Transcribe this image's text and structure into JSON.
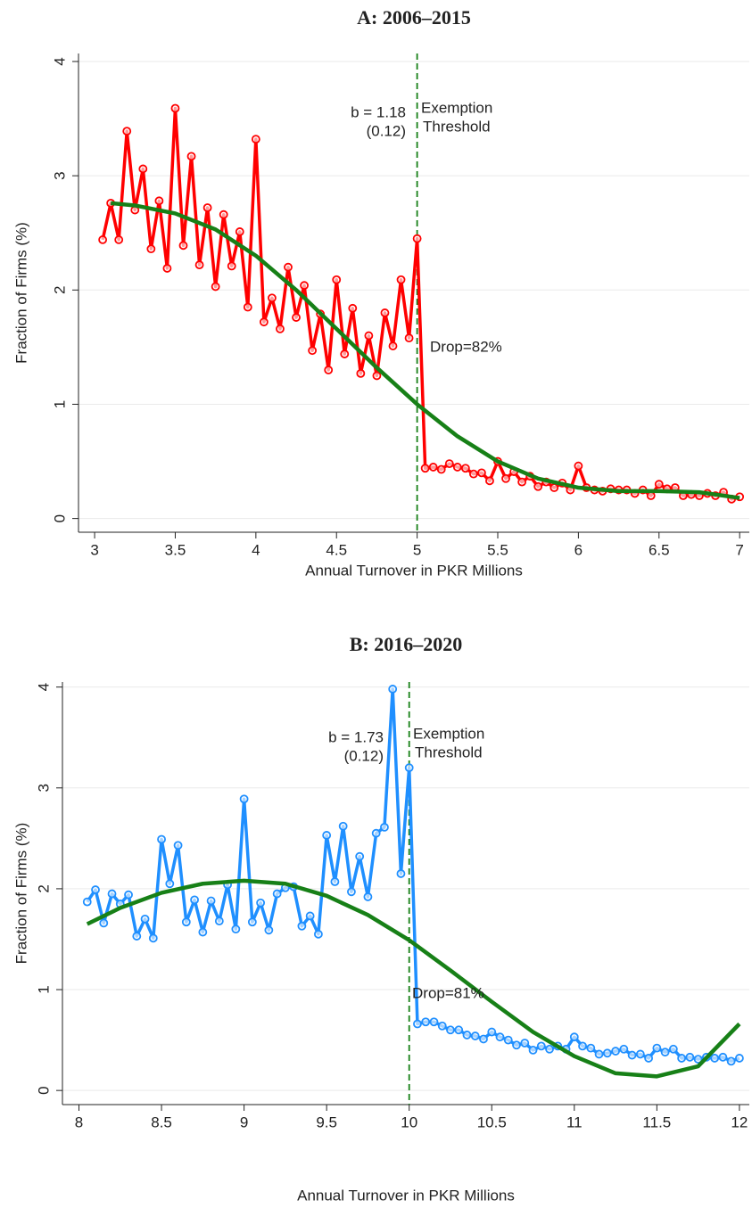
{
  "chart_data": [
    {
      "type": "line",
      "title": "A: 2006–2015",
      "xlabel": "Annual Turnover in PKR Millions",
      "ylabel": "Fraction of Firms (%)",
      "xlim": [
        2.9,
        7.06
      ],
      "ylim": [
        -0.12,
        4.07
      ],
      "xticks": [
        3,
        3.5,
        4,
        4.5,
        5,
        5.5,
        6,
        6.5,
        7
      ],
      "yticks": [
        0,
        1,
        2,
        3,
        4
      ],
      "grid": true,
      "threshold": 5,
      "annotations": [
        "b = 1.18",
        "(0.12)",
        "Exemption",
        "Threshold",
        "Drop=82%"
      ],
      "series": [
        {
          "color": "#ff0000",
          "marker": true,
          "x": [
            3.05,
            3.1,
            3.15,
            3.2,
            3.25,
            3.3,
            3.35,
            3.4,
            3.45,
            3.5,
            3.55,
            3.6,
            3.65,
            3.7,
            3.75,
            3.8,
            3.85,
            3.9,
            3.95,
            4.0,
            4.05,
            4.1,
            4.15,
            4.2,
            4.25,
            4.3,
            4.35,
            4.4,
            4.45,
            4.5,
            4.55,
            4.6,
            4.65,
            4.7,
            4.75,
            4.8,
            4.85,
            4.9,
            4.95,
            5.0,
            5.05,
            5.1,
            5.15,
            5.2,
            5.25,
            5.3,
            5.35,
            5.4,
            5.45,
            5.5,
            5.55,
            5.6,
            5.65,
            5.7,
            5.75,
            5.8,
            5.85,
            5.9,
            5.95,
            6.0,
            6.05,
            6.1,
            6.15,
            6.2,
            6.25,
            6.3,
            6.35,
            6.4,
            6.45,
            6.5,
            6.55,
            6.6,
            6.65,
            6.7,
            6.75,
            6.8,
            6.85,
            6.9,
            6.95,
            7.0
          ],
          "values": [
            2.44,
            2.76,
            2.44,
            3.39,
            2.7,
            3.06,
            2.36,
            2.78,
            2.19,
            3.59,
            2.39,
            3.17,
            2.22,
            2.72,
            2.03,
            2.66,
            2.21,
            2.51,
            1.85,
            3.32,
            1.72,
            1.93,
            1.66,
            2.2,
            1.76,
            2.04,
            1.47,
            1.79,
            1.3,
            2.09,
            1.44,
            1.84,
            1.27,
            1.6,
            1.25,
            1.8,
            1.51,
            2.09,
            1.58,
            2.45,
            0.44,
            0.45,
            0.43,
            0.48,
            0.45,
            0.44,
            0.39,
            0.4,
            0.33,
            0.5,
            0.35,
            0.41,
            0.32,
            0.37,
            0.28,
            0.32,
            0.27,
            0.31,
            0.25,
            0.46,
            0.27,
            0.25,
            0.24,
            0.26,
            0.25,
            0.25,
            0.22,
            0.25,
            0.2,
            0.3,
            0.26,
            0.27,
            0.2,
            0.21,
            0.2,
            0.22,
            0.2,
            0.23,
            0.17,
            0.19
          ]
        },
        {
          "color": "#178017",
          "marker": false,
          "x": [
            3.1,
            3.25,
            3.5,
            3.75,
            4.0,
            4.25,
            4.5,
            4.75,
            5.0,
            5.25,
            5.5,
            5.75,
            6.0,
            6.25,
            6.5,
            6.75,
            7.0
          ],
          "values": [
            2.76,
            2.74,
            2.67,
            2.53,
            2.3,
            2.0,
            1.66,
            1.32,
            1.0,
            0.72,
            0.5,
            0.35,
            0.27,
            0.24,
            0.24,
            0.23,
            0.18
          ]
        }
      ]
    },
    {
      "type": "line",
      "title": "B: 2016–2020",
      "xlabel": "Annual Turnover in PKR Millions",
      "ylabel": "Fraction of Firms (%)",
      "xlim": [
        7.9,
        12.06
      ],
      "ylim": [
        -0.14,
        4.05
      ],
      "xticks": [
        8,
        8.5,
        9,
        9.5,
        10,
        10.5,
        11,
        11.5,
        12
      ],
      "yticks": [
        0,
        1,
        2,
        3,
        4
      ],
      "grid": true,
      "threshold": 10,
      "annotations": [
        "b = 1.73",
        "(0.12)",
        "Exemption",
        "Threshold",
        "Drop=81%"
      ],
      "series": [
        {
          "color": "#1f8fff",
          "marker": true,
          "x": [
            8.05,
            8.1,
            8.15,
            8.2,
            8.25,
            8.3,
            8.35,
            8.4,
            8.45,
            8.5,
            8.55,
            8.6,
            8.65,
            8.7,
            8.75,
            8.8,
            8.85,
            8.9,
            8.95,
            9.0,
            9.05,
            9.1,
            9.15,
            9.2,
            9.25,
            9.3,
            9.35,
            9.4,
            9.45,
            9.5,
            9.55,
            9.6,
            9.65,
            9.7,
            9.75,
            9.8,
            9.85,
            9.9,
            9.95,
            10.0,
            10.05,
            10.1,
            10.15,
            10.2,
            10.25,
            10.3,
            10.35,
            10.4,
            10.45,
            10.5,
            10.55,
            10.6,
            10.65,
            10.7,
            10.75,
            10.8,
            10.85,
            10.9,
            10.95,
            11.0,
            11.05,
            11.1,
            11.15,
            11.2,
            11.25,
            11.3,
            11.35,
            11.4,
            11.45,
            11.5,
            11.55,
            11.6,
            11.65,
            11.7,
            11.75,
            11.8,
            11.85,
            11.9,
            11.95,
            12.0
          ],
          "values": [
            1.87,
            1.99,
            1.66,
            1.95,
            1.85,
            1.94,
            1.53,
            1.7,
            1.51,
            2.49,
            2.05,
            2.43,
            1.67,
            1.89,
            1.57,
            1.88,
            1.68,
            2.04,
            1.6,
            2.89,
            1.67,
            1.86,
            1.59,
            1.95,
            2.01,
            2.02,
            1.63,
            1.73,
            1.55,
            2.53,
            2.07,
            2.62,
            1.97,
            2.32,
            1.92,
            2.55,
            2.61,
            3.98,
            2.15,
            3.2,
            0.66,
            0.68,
            0.68,
            0.64,
            0.6,
            0.6,
            0.55,
            0.54,
            0.51,
            0.58,
            0.53,
            0.5,
            0.45,
            0.47,
            0.4,
            0.44,
            0.41,
            0.44,
            0.41,
            0.53,
            0.44,
            0.42,
            0.36,
            0.37,
            0.39,
            0.41,
            0.35,
            0.36,
            0.32,
            0.42,
            0.38,
            0.41,
            0.32,
            0.33,
            0.31,
            0.33,
            0.32,
            0.33,
            0.29,
            0.32
          ]
        },
        {
          "color": "#178017",
          "marker": false,
          "x": [
            8.05,
            8.25,
            8.5,
            8.75,
            9.0,
            9.25,
            9.5,
            9.75,
            10.0,
            10.25,
            10.5,
            10.75,
            11.0,
            11.25,
            11.5,
            11.75,
            12.0
          ],
          "values": [
            1.65,
            1.81,
            1.96,
            2.05,
            2.08,
            2.05,
            1.93,
            1.74,
            1.49,
            1.19,
            0.88,
            0.58,
            0.34,
            0.17,
            0.14,
            0.24,
            0.66
          ]
        }
      ]
    }
  ]
}
